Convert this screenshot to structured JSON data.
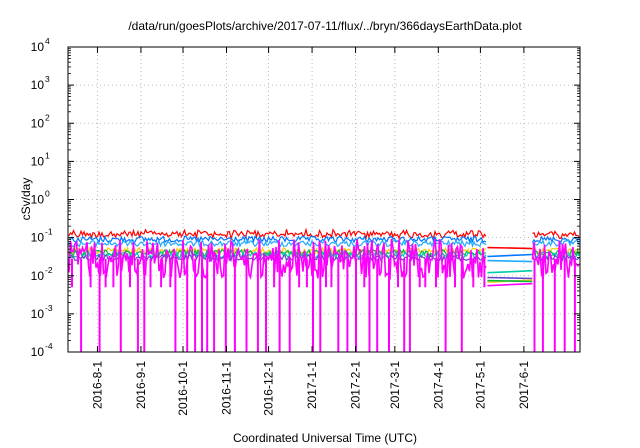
{
  "chart_data": {
    "type": "line",
    "title": "/data/run/goesPlots/archive/2017-07-11/flux/../bryn/366daysEarthData.plot",
    "xlabel": "Coordinated Universal Time (UTC)",
    "ylabel": "cSv/day",
    "yscale": "log",
    "ylim": [
      0.0001,
      10000
    ],
    "xlim": [
      "2016-07-11",
      "2017-07-11"
    ],
    "grid": true,
    "x_ticks": [
      "2016-8-1",
      "2016-9-1",
      "2016-10-1",
      "2016-11-1",
      "2016-12-1",
      "2017-1-1",
      "2017-2-1",
      "2017-3-1",
      "2017-4-1",
      "2017-5-1",
      "2017-6-1"
    ],
    "y_ticks": [
      {
        "base": "10",
        "exp": "-4"
      },
      {
        "base": "10",
        "exp": "-3"
      },
      {
        "base": "10",
        "exp": "-2"
      },
      {
        "base": "10",
        "exp": "-1"
      },
      {
        "base": "10",
        "exp": "0"
      },
      {
        "base": "10",
        "exp": "1"
      },
      {
        "base": "10",
        "exp": "2"
      },
      {
        "base": "10",
        "exp": "3"
      },
      {
        "base": "10",
        "exp": "4"
      }
    ],
    "data_gap": [
      "2017-05-06",
      "2017-06-07"
    ],
    "series": [
      {
        "color": "#ff0000",
        "level": 0.11,
        "gap_level": 0.055
      },
      {
        "color": "#0077ff",
        "level": 0.09,
        "gap_level": 0.032
      },
      {
        "color": "#22aaff",
        "level": 0.07,
        "gap_level": 0.025
      },
      {
        "color": "#ffcc00",
        "level": 0.045,
        "gap_level": 0.0068
      },
      {
        "color": "#00bb44",
        "level": 0.04,
        "gap_level": 0.0075
      },
      {
        "color": "#00ccaa",
        "level": 0.035,
        "gap_level": 0.012
      },
      {
        "color": "#6644cc",
        "level": 0.03,
        "gap_level": 0.009
      },
      {
        "color": "#ff00ff",
        "level": 0.028,
        "gap_level": 0.0055
      }
    ]
  }
}
